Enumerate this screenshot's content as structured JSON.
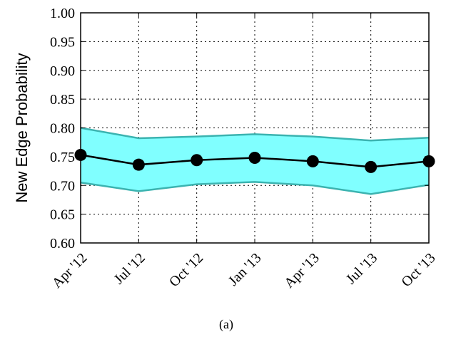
{
  "chart_data": {
    "type": "line",
    "title": "",
    "xlabel": "",
    "ylabel": "New Edge Probability",
    "categories": [
      "Apr '12",
      "Jul '12",
      "Oct '12",
      "Jan '13",
      "Apr '13",
      "Jul '13",
      "Oct '13"
    ],
    "series": [
      {
        "values": [
          0.753,
          0.736,
          0.744,
          0.748,
          0.742,
          0.732,
          0.742
        ],
        "upper": [
          0.8,
          0.782,
          0.785,
          0.789,
          0.785,
          0.778,
          0.783
        ],
        "lower": [
          0.705,
          0.69,
          0.702,
          0.706,
          0.7,
          0.685,
          0.701
        ],
        "line_color": "#000000",
        "band_fill": "#80FFFF",
        "band_edge": "#3BB3B0"
      }
    ],
    "ylim": [
      0.6,
      1.0
    ],
    "yticks": [
      "0.60",
      "0.65",
      "0.70",
      "0.75",
      "0.80",
      "0.85",
      "0.90",
      "0.95",
      "1.00"
    ],
    "grid": true
  },
  "caption": "(a)"
}
